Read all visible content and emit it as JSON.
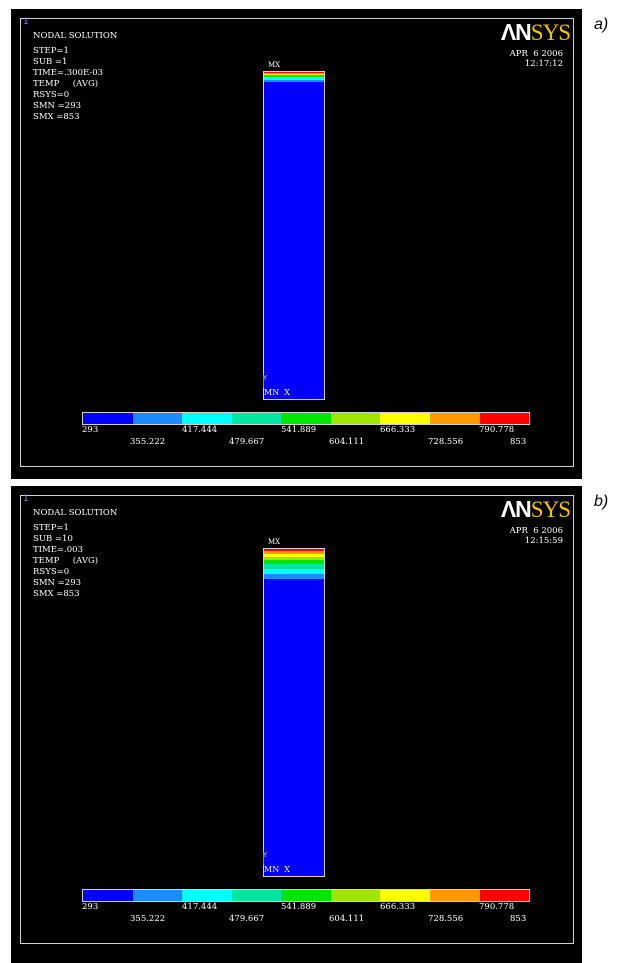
{
  "panels": [
    {
      "label": "a)",
      "window_number": "1",
      "logo_an": "ΛN",
      "logo_sys": "SYS",
      "title": "NODAL SOLUTION",
      "lines": [
        "STEP=1",
        "SUB =1",
        "TIME=.300E-03",
        "TEMP     (AVG)",
        "RSYS=0",
        "SMN =293",
        "SMX =853"
      ],
      "date": "APR  6 2006",
      "time": "12:17:12",
      "mx_label": "MX",
      "mn_label": "MN  X",
      "y_label": "Y",
      "hot_zone_fraction": 0.03
    },
    {
      "label": "b)",
      "window_number": "1",
      "logo_an": "ΛN",
      "logo_sys": "SYS",
      "title": "NODAL SOLUTION",
      "lines": [
        "STEP=1",
        "SUB =10",
        "TIME=.003",
        "TEMP     (AVG)",
        "RSYS=0",
        "SMN =293",
        "SMX =853"
      ],
      "date": "APR  6 2006",
      "time": "12:15:59",
      "mx_label": "MX",
      "mn_label": "MN  X",
      "y_label": "Y",
      "hot_zone_fraction": 0.09
    }
  ],
  "legend": {
    "colors": [
      "#0000ff",
      "#1a8cff",
      "#00ffff",
      "#00e6a0",
      "#00e600",
      "#a0e600",
      "#ffff00",
      "#ff9900",
      "#ff0000"
    ],
    "top_labels": [
      "293",
      "417.444",
      "541.889",
      "666.333",
      "790.778"
    ],
    "bottom_labels": [
      "355.222",
      "479.667",
      "604.111",
      "728.556",
      "853"
    ]
  }
}
